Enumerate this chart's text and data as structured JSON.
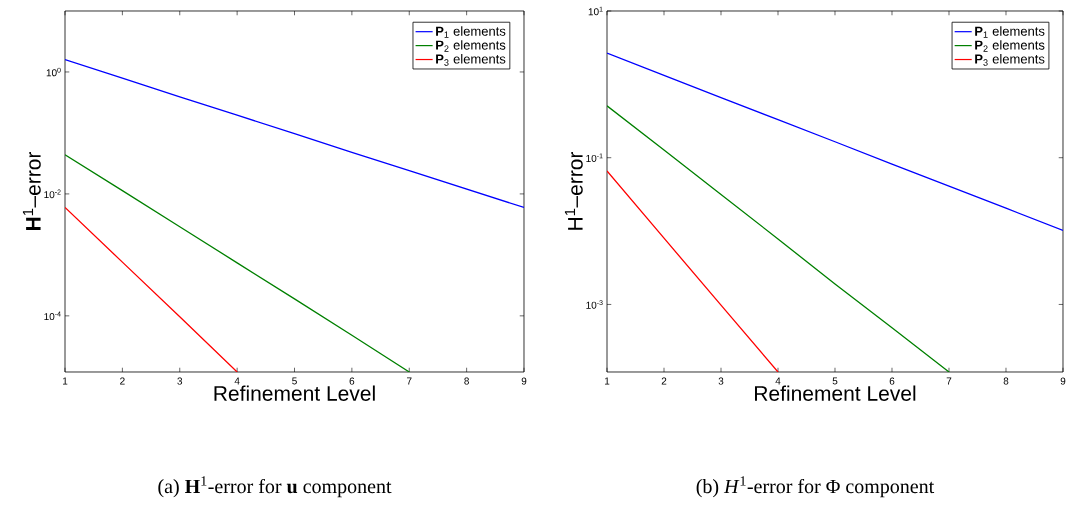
{
  "chart_data": [
    {
      "type": "line",
      "xlabel": "Refinement Level",
      "ylabel": "**H**$^{1}$–error",
      "annotations": [
        "(a) **H**$^{1}$-error for **u** component"
      ],
      "log": "y",
      "legend": "top right",
      "xlim": [
        1,
        9
      ],
      "xticks": [
        1,
        2,
        3,
        4,
        5,
        6,
        7,
        8,
        9
      ],
      "ylim": [
        1.2e-05,
        10
      ],
      "yticks": [
        {
          "value": 1,
          "label": "10$^{0}$"
        },
        {
          "value": 0.01,
          "label": "10$^{-2}$"
        },
        {
          "value": 0.0001,
          "label": "10$^{-4}$"
        }
      ],
      "series": [
        {
          "name": "**P**$_{1}$ elements",
          "color": "#0000ff",
          "x": [
            1,
            2,
            3,
            4,
            5,
            6,
            7,
            8,
            9
          ],
          "values": [
            1.6,
            0.79,
            0.39,
            0.196,
            0.097,
            0.048,
            0.024,
            0.012,
            0.006
          ]
        },
        {
          "name": "**P**$_{2}$ elements",
          "color": "#008000",
          "x": [
            1,
            2,
            3,
            4,
            5,
            6,
            7
          ],
          "values": [
            0.044,
            0.0113,
            0.0029,
            0.00074,
            0.00019,
            4.8e-05,
            1.2e-05
          ]
        },
        {
          "name": "**P**$_{3}$ elements",
          "color": "#ff0000",
          "x": [
            1,
            2,
            3,
            4
          ],
          "values": [
            0.006,
            0.00076,
            9.7e-05,
            1.2e-05
          ]
        }
      ]
    },
    {
      "type": "line",
      "xlabel": "Refinement Level",
      "ylabel": "H$^{1}$–error",
      "annotations": [
        "(b) *H*$^{1}$-error for Φ component"
      ],
      "log": "y",
      "legend": "top right",
      "xlim": [
        1,
        9
      ],
      "xticks": [
        1,
        2,
        3,
        4,
        5,
        6,
        7,
        8,
        9
      ],
      "ylim": [
        0.00012,
        10
      ],
      "yticks": [
        {
          "value": 10,
          "label": "10$^{1}$"
        },
        {
          "value": 0.1,
          "label": "10$^{-1}$"
        },
        {
          "value": 0.001,
          "label": "10$^{-3}$"
        }
      ],
      "series": [
        {
          "name": "**P**$_{1}$ elements",
          "color": "#0000ff",
          "x": [
            1,
            2,
            3,
            4,
            5,
            6,
            7,
            8,
            9
          ],
          "values": [
            2.67,
            1.33,
            0.66,
            0.33,
            0.165,
            0.082,
            0.041,
            0.0205,
            0.0102
          ]
        },
        {
          "name": "**P**$_{2}$ elements",
          "color": "#008000",
          "x": [
            1,
            2,
            3,
            4,
            5,
            6,
            7
          ],
          "values": [
            0.51,
            0.127,
            0.0316,
            0.0078,
            0.0019,
            0.00048,
            0.00012
          ]
        },
        {
          "name": "**P**$_{3}$ elements",
          "color": "#ff0000",
          "x": [
            1,
            2,
            3,
            4
          ],
          "values": [
            0.066,
            0.008,
            0.00098,
            0.00012
          ]
        }
      ]
    }
  ]
}
